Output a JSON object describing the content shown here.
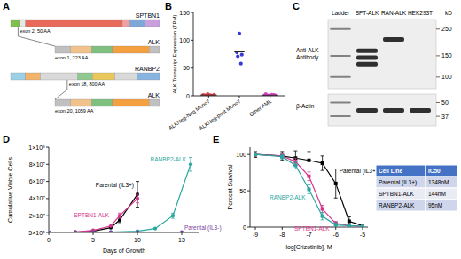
{
  "panel_labels": [
    "A",
    "B",
    "C",
    "D",
    "E"
  ],
  "diagram": {
    "fusions": [
      {
        "partner": "SPTBN1",
        "partner_junction": "exon 2, 50 AA",
        "alk": "ALK",
        "alk_junction": "exon 1, 223 AA"
      },
      {
        "partner": "RANBP2",
        "partner_junction": "exon 18, 800 AA",
        "alk": "ALK",
        "alk_junction": "exon 20, 1059 AA"
      }
    ]
  },
  "blot": {
    "lanes": [
      "Ladder",
      "SPT-ALK",
      "RAN-ALK",
      "HEK293T"
    ],
    "unit": "kD",
    "panels": [
      {
        "label": "Anti-ALK Antibody",
        "kd_range": [
          300,
          80
        ],
        "markers": [
          250,
          150,
          100
        ],
        "bands": [
          {
            "lane": 0,
            "kd": 250
          },
          {
            "lane": 0,
            "kd": 150
          },
          {
            "lane": 0,
            "kd": 100
          },
          {
            "lane": 1,
            "kd": 165
          },
          {
            "lane": 1,
            "kd": 145
          },
          {
            "lane": 1,
            "kd": 128
          },
          {
            "lane": 2,
            "kd": 205
          }
        ]
      },
      {
        "label": "β-Actin",
        "kd_range": [
          60,
          30
        ],
        "markers": [
          50,
          37
        ],
        "bands": [
          {
            "lane": 0,
            "kd": 50
          },
          {
            "lane": 0,
            "kd": 37
          },
          {
            "lane": 1,
            "kd": 42
          },
          {
            "lane": 2,
            "kd": 42
          },
          {
            "lane": 3,
            "kd": 42
          }
        ]
      }
    ]
  },
  "table": {
    "header": [
      "Cell Line",
      "IC50"
    ],
    "rows": [
      [
        "Parental (IL3+)",
        "1348nM"
      ],
      [
        "SPTBN1-ALK",
        "144nM"
      ],
      [
        "RANBP2-ALK",
        "95nM"
      ]
    ]
  },
  "chart_data": [
    {
      "type": "scatter",
      "y_label": "ALK Transcript Expression (TPM)",
      "xlim": [
        0.5,
        3.5
      ],
      "xticks": [
        {
          "value": 1,
          "label": "ALKNeg-Neg Mono7"
        },
        {
          "value": 2,
          "label": "ALKNeg-post Mono7"
        },
        {
          "value": 3,
          "label": "Other AML"
        }
      ],
      "ylim": [
        0,
        150
      ],
      "yticks": [
        0,
        50,
        100,
        150
      ],
      "marker": "circle",
      "series": [
        {
          "color": "#e0474c",
          "x": [
            0.82,
            0.9,
            0.97,
            1.05,
            1.12,
            1.18,
            0.86,
            1.0
          ],
          "values": [
            1.5,
            0.5,
            3,
            1,
            0.3,
            2,
            0.8,
            1.2
          ],
          "mean": 1.3
        },
        {
          "color": "#3a3ad6",
          "x": [
            2,
            1.92,
            2.08,
            1.95,
            2.05
          ],
          "values": [
            112,
            78,
            74,
            71,
            58
          ],
          "mean": 79
        },
        {
          "color": "#e040c8",
          "x": [
            2.82,
            2.9,
            2.97,
            3.05,
            3.12,
            3.18,
            2.86,
            3.0,
            3.1
          ],
          "values": [
            0.5,
            1,
            0.2,
            2,
            1.5,
            0.7,
            3,
            0.4,
            1
          ],
          "mean": 1.1
        }
      ]
    },
    {
      "type": "line",
      "x_label": "Days of Growth",
      "y_label": "Cumulative Viable Cells",
      "xlim": [
        0,
        17
      ],
      "xticks": [
        0,
        5,
        10,
        15
      ],
      "ylim": [
        500000,
        100000000
      ],
      "yticks": [
        {
          "value": 500000,
          "label": "5×10⁵"
        },
        {
          "value": 20000000,
          "label": "2×10⁷"
        },
        {
          "value": 40000000,
          "label": "4×10⁷"
        },
        {
          "value": 60000000,
          "label": "6×10⁷"
        },
        {
          "value": 80000000,
          "label": "8×10⁷"
        },
        {
          "value": 100000000,
          "label": "1×10⁸"
        }
      ],
      "marker": "circle",
      "series": [
        {
          "name": "Parental (IL3+)",
          "color": "#000000",
          "x": [
            0,
            3,
            5,
            7,
            8,
            10
          ],
          "values": [
            500000,
            1000000,
            2000000,
            6000000,
            15000000,
            45000000
          ],
          "errors": [
            null,
            null,
            null,
            null,
            3000000,
            15000000
          ]
        },
        {
          "name": "SPTBN1-ALK",
          "color": "#d6338a",
          "x": [
            0,
            3,
            5,
            7,
            8,
            10
          ],
          "values": [
            500000,
            1000000,
            3000000,
            8000000,
            20000000,
            40000000
          ],
          "errors": [
            null,
            null,
            null,
            null,
            3000000,
            5000000
          ]
        },
        {
          "name": "RANBP2-ALK",
          "color": "#2aa6a0",
          "x": [
            0,
            3,
            5,
            7,
            10,
            12,
            14,
            16
          ],
          "values": [
            500000,
            600000,
            700000,
            1000000,
            2000000,
            5000000,
            20000000,
            80000000
          ],
          "errors": [
            null,
            null,
            null,
            null,
            null,
            null,
            3000000,
            8000000
          ]
        },
        {
          "name": "Parental (IL3-)",
          "color": "#7a3fa0",
          "x": [
            0,
            3,
            5,
            7,
            10,
            15
          ],
          "values": [
            600000,
            700000,
            800000,
            800000,
            900000,
            900000
          ],
          "errors": [
            null,
            null,
            null,
            null,
            null,
            null
          ]
        }
      ]
    },
    {
      "type": "line",
      "x_label": "log[Crizotinib], M",
      "y_label": "Percent Survival",
      "xlim": [
        -9.2,
        -4.8
      ],
      "xticks": [
        -9,
        -8,
        -7,
        -6,
        -5
      ],
      "ylim": [
        0,
        110
      ],
      "yticks": [
        0,
        50,
        100
      ],
      "marker": "square",
      "series": [
        {
          "name": "Parental (IL3+)",
          "color": "#000000",
          "x": [
            -9,
            -8,
            -7.5,
            -7,
            -6.5,
            -6,
            -5.5,
            -5
          ],
          "values": [
            100,
            98,
            95,
            92,
            88,
            60,
            8,
            2
          ],
          "errors": [
            4,
            6,
            10,
            12,
            10,
            20,
            6,
            2
          ]
        },
        {
          "name": "SPTBN1-ALK",
          "color": "#d6338a",
          "x": [
            -9,
            -8,
            -7.5,
            -7,
            -6.5,
            -6,
            -5.5,
            -5
          ],
          "values": [
            100,
            98,
            90,
            70,
            25,
            5,
            2,
            1
          ],
          "errors": [
            2,
            3,
            5,
            6,
            5,
            3,
            2,
            1
          ]
        },
        {
          "name": "RANBP2-ALK",
          "color": "#2aa6a0",
          "x": [
            -9,
            -8,
            -7.5,
            -7,
            -6.5,
            -6,
            -5.5,
            -5
          ],
          "values": [
            100,
            97,
            85,
            52,
            15,
            3,
            2,
            1
          ],
          "errors": [
            2,
            3,
            5,
            6,
            5,
            3,
            2,
            1
          ]
        }
      ]
    }
  ]
}
